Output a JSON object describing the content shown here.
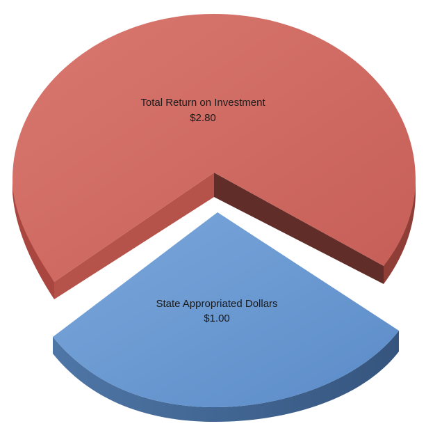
{
  "chart_data": {
    "type": "pie",
    "style": "3d-exploded",
    "slices": [
      {
        "label": "Total Return on Investment",
        "value": 2.8,
        "value_label": "$2.80",
        "color": "#D06A61",
        "shadow_color": "#8E3E37",
        "exploded": false
      },
      {
        "label": "State Appropriated Dollars",
        "value": 1.0,
        "value_label": "$1.00",
        "color": "#6A9ACF",
        "shadow_color": "#3F618A",
        "exploded": true
      }
    ]
  }
}
